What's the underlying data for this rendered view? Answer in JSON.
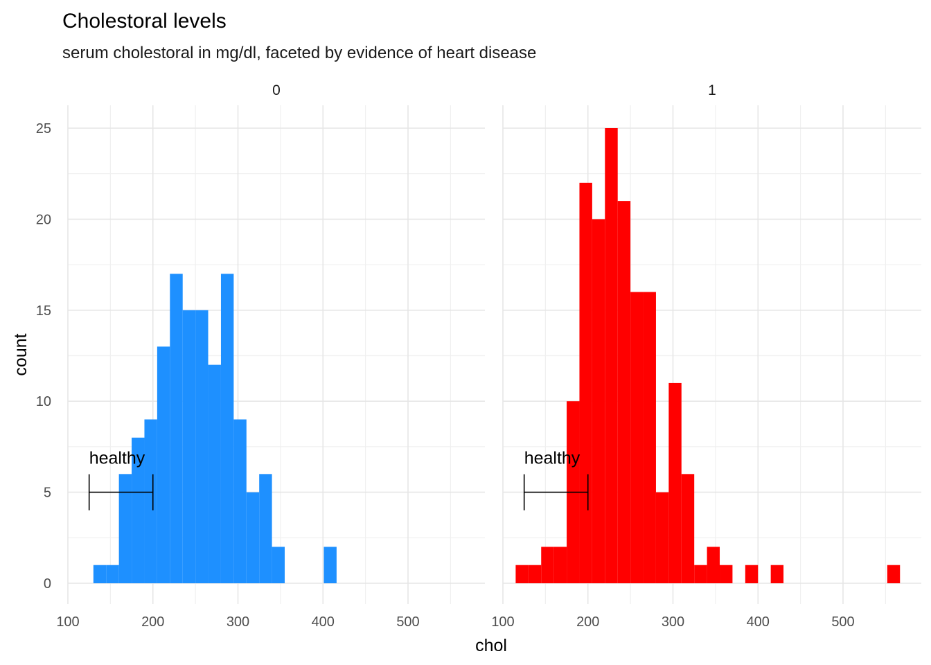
{
  "chart_data": {
    "type": "bar",
    "title": "Cholestoral levels",
    "subtitle": "serum cholestoral in mg/dl, faceted by evidence of heart disease",
    "xlabel": "chol",
    "ylabel": "count",
    "xlim": [
      100,
      570
    ],
    "ylim": [
      0,
      25
    ],
    "x_ticks": [
      100,
      200,
      300,
      400,
      500
    ],
    "y_ticks": [
      0,
      5,
      10,
      15,
      20,
      25
    ],
    "grid": true,
    "annotation": {
      "label": "healthy",
      "x_from": 125,
      "x_to": 200,
      "y": 5
    },
    "facets": [
      {
        "label": "0",
        "color": "#1E90FF",
        "bars": [
          {
            "x0": 130,
            "x1": 145,
            "count": 1
          },
          {
            "x0": 145,
            "x1": 160,
            "count": 1
          },
          {
            "x0": 160,
            "x1": 175,
            "count": 6
          },
          {
            "x0": 175,
            "x1": 190,
            "count": 8
          },
          {
            "x0": 190,
            "x1": 205,
            "count": 9
          },
          {
            "x0": 205,
            "x1": 220,
            "count": 13
          },
          {
            "x0": 220,
            "x1": 235,
            "count": 17
          },
          {
            "x0": 235,
            "x1": 250,
            "count": 15
          },
          {
            "x0": 250,
            "x1": 265,
            "count": 15
          },
          {
            "x0": 265,
            "x1": 280,
            "count": 12
          },
          {
            "x0": 280,
            "x1": 295,
            "count": 17
          },
          {
            "x0": 295,
            "x1": 310,
            "count": 9
          },
          {
            "x0": 310,
            "x1": 325,
            "count": 5
          },
          {
            "x0": 325,
            "x1": 340,
            "count": 6
          },
          {
            "x0": 340,
            "x1": 355,
            "count": 2
          },
          {
            "x0": 401,
            "x1": 416,
            "count": 2
          }
        ]
      },
      {
        "label": "1",
        "color": "#FF0000",
        "bars": [
          {
            "x0": 115,
            "x1": 130,
            "count": 1
          },
          {
            "x0": 130,
            "x1": 145,
            "count": 1
          },
          {
            "x0": 145,
            "x1": 160,
            "count": 2
          },
          {
            "x0": 160,
            "x1": 175,
            "count": 2
          },
          {
            "x0": 175,
            "x1": 190,
            "count": 10
          },
          {
            "x0": 190,
            "x1": 205,
            "count": 22
          },
          {
            "x0": 205,
            "x1": 220,
            "count": 20
          },
          {
            "x0": 220,
            "x1": 235,
            "count": 25
          },
          {
            "x0": 235,
            "x1": 250,
            "count": 21
          },
          {
            "x0": 250,
            "x1": 265,
            "count": 16
          },
          {
            "x0": 265,
            "x1": 280,
            "count": 16
          },
          {
            "x0": 280,
            "x1": 295,
            "count": 5
          },
          {
            "x0": 295,
            "x1": 310,
            "count": 11
          },
          {
            "x0": 310,
            "x1": 325,
            "count": 6
          },
          {
            "x0": 325,
            "x1": 340,
            "count": 1
          },
          {
            "x0": 340,
            "x1": 355,
            "count": 2
          },
          {
            "x0": 355,
            "x1": 370,
            "count": 1
          },
          {
            "x0": 385,
            "x1": 400,
            "count": 1
          },
          {
            "x0": 415,
            "x1": 430,
            "count": 1
          },
          {
            "x0": 552,
            "x1": 567,
            "count": 1
          }
        ]
      }
    ]
  }
}
